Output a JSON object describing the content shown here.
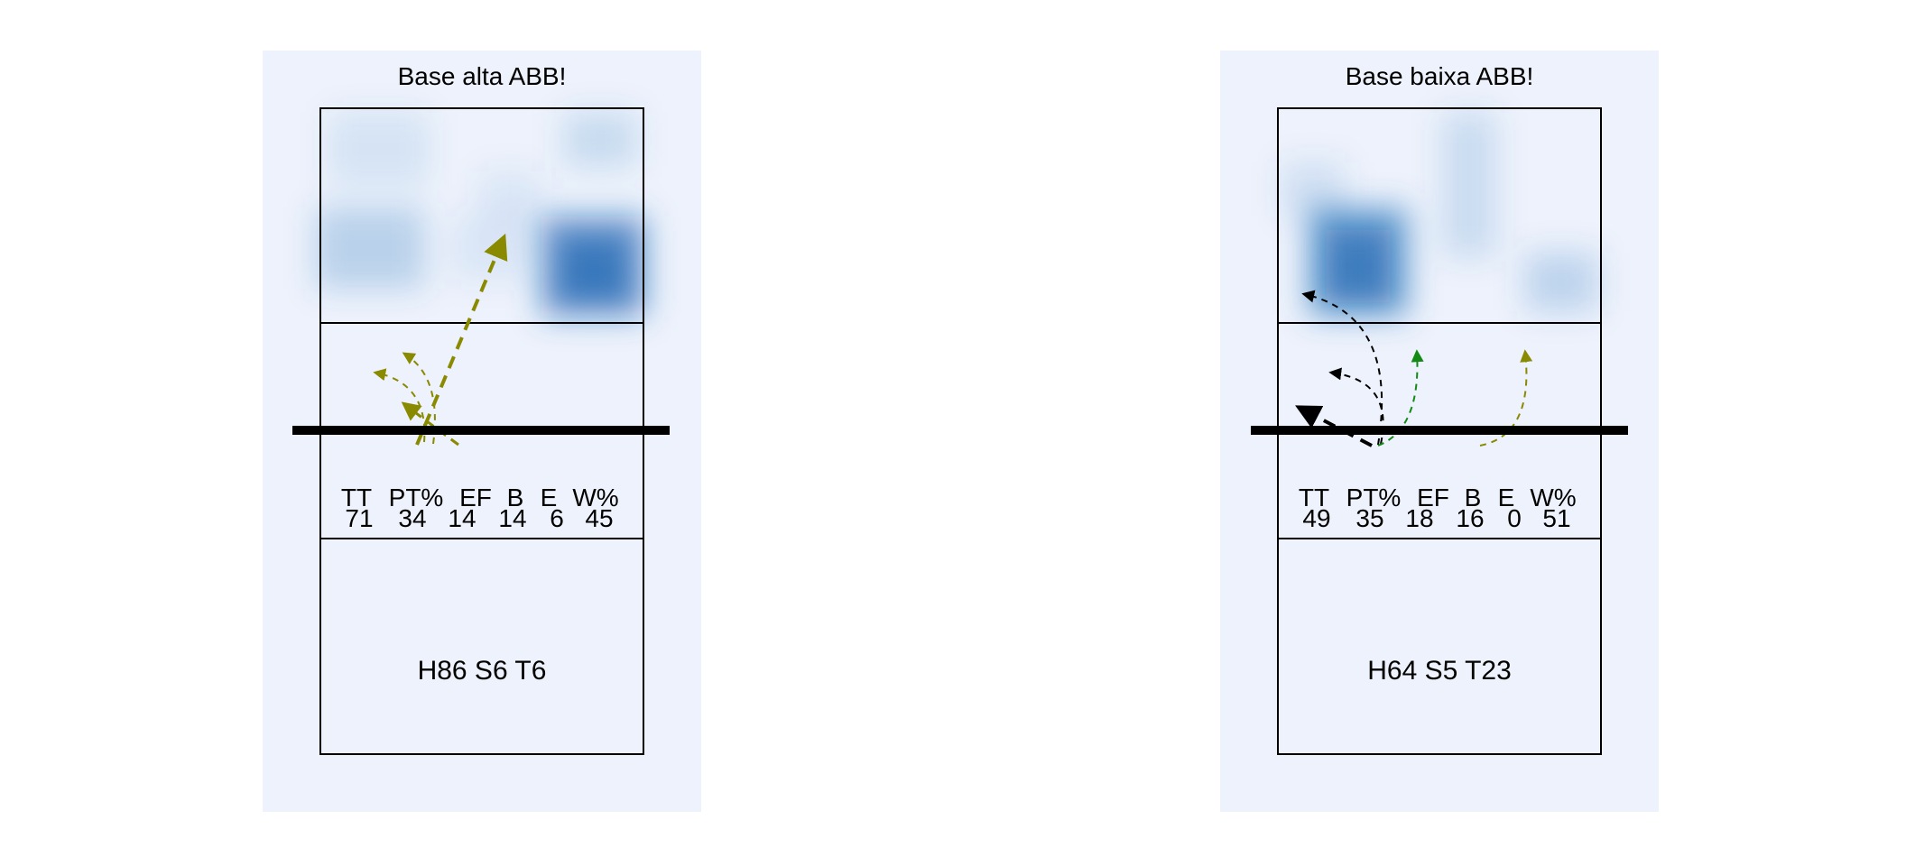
{
  "colors": {
    "panel_background": "#edf2fc",
    "heat_color": "#0b5cad",
    "arrow_olive": "#8a8a00",
    "arrow_black": "#000000",
    "arrow_green": "#138a13",
    "court_line": "#000000",
    "net": "#000000"
  },
  "panels": [
    {
      "title": "Base alta ABB!",
      "stats": {
        "headers": [
          "TT",
          "PT%",
          "EF",
          "B",
          "E",
          "W%"
        ],
        "values": [
          "71",
          "34",
          "14",
          "14",
          "6",
          "45"
        ]
      },
      "footer": "H86 S6 T6"
    },
    {
      "title": "Base baixa ABB!",
      "stats": {
        "headers": [
          "TT",
          "PT%",
          "EF",
          "B",
          "E",
          "W%"
        ],
        "values": [
          "49",
          "35",
          "18",
          "16",
          "0",
          "51"
        ]
      },
      "footer": "H64 S5 T23"
    }
  ]
}
